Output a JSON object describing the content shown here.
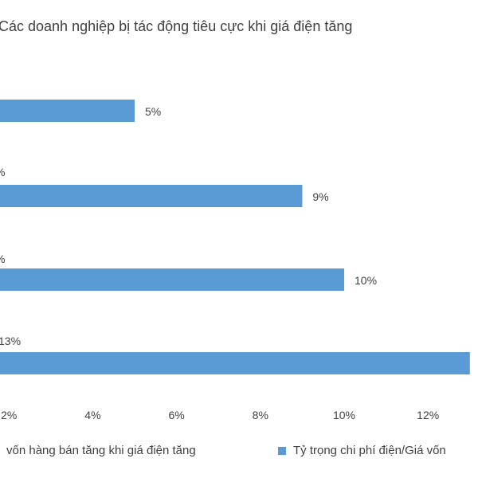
{
  "chart_data": {
    "type": "bar",
    "orientation": "horizontal",
    "title": "Các doanh nghiệp bị tác động tiêu cực khi giá điện tăng",
    "categories": [
      "",
      "",
      "",
      ""
    ],
    "series": [
      {
        "name": "vốn hàng bán tăng khi giá điện tăng",
        "color": "#5b9bd5",
        "values": [
          null,
          null,
          null,
          null
        ],
        "data_labels": [
          "",
          "%",
          "%",
          "13%"
        ]
      },
      {
        "name": "Tỷ trọng chi phí điện/Giá vốn",
        "color": "#5b9bd5",
        "values": [
          5,
          9,
          10,
          13
        ],
        "data_labels": [
          "5%",
          "9%",
          "10%",
          ""
        ]
      }
    ],
    "xaxis": {
      "ticks": [
        2,
        4,
        6,
        8,
        10,
        12
      ],
      "tick_labels": [
        "2%",
        "4%",
        "6%",
        "8%",
        "10%",
        "12%"
      ]
    },
    "xlim": [
      0,
      14
    ],
    "grid": false,
    "legend_position": "bottom"
  }
}
